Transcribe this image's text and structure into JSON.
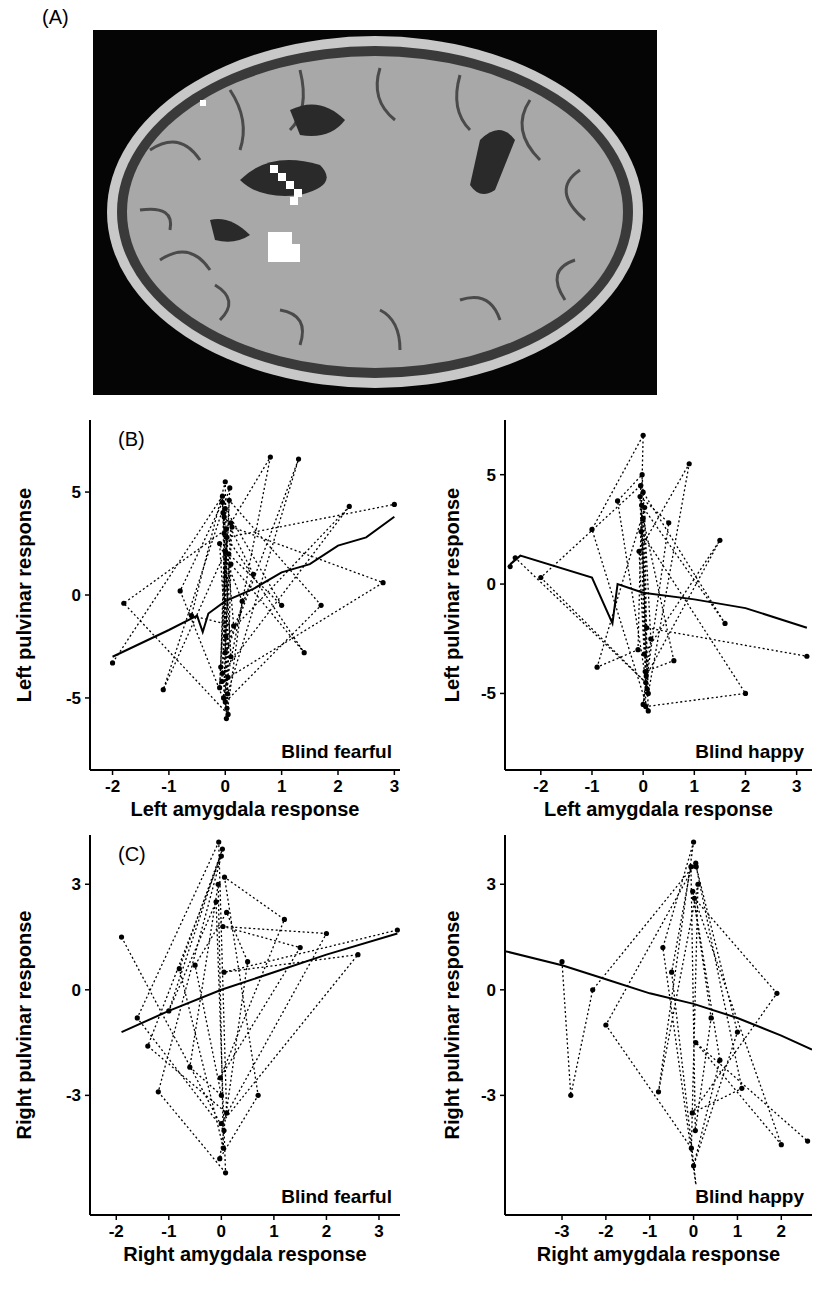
{
  "figure": {
    "panel_labels": [
      "(A)",
      "(B)",
      "(C)"
    ]
  },
  "chart_data": [
    {
      "type": "line",
      "x_label": "Left amygdala response",
      "y_label": "Left pulvinar response",
      "annotation": "Blind fearful",
      "xlim": [
        -2.4,
        3.1
      ],
      "ylim": [
        -8.5,
        8.5
      ],
      "xticks": [
        -2,
        -1,
        0,
        1,
        2,
        3
      ],
      "yticks": [
        -5,
        0,
        5
      ],
      "series": [
        {
          "type": "line",
          "line_style": "dotted",
          "marker": "circle",
          "color": "#000000",
          "x": [
            -2.0,
            -0.05,
            0.05,
            -1.8,
            0.02,
            -0.1,
            0.08,
            -1.1,
            0.0,
            0.1,
            -0.05,
            -0.8,
            0.03,
            -0.02,
            0.15,
            -0.6,
            0.0,
            0.05,
            -0.1,
            0.3,
            0.02,
            -0.04,
            0.5,
            0.0,
            0.1,
            0.8,
            -0.03,
            0.06,
            1.0,
            0.0,
            -0.08,
            1.3,
            0.04,
            0.1,
            1.4,
            -0.02,
            0.0,
            1.7,
            0.07,
            -0.05,
            2.2,
            0.01,
            0.12,
            2.8,
            -0.06,
            0.03,
            3.0
          ],
          "values": [
            -3.3,
            4.8,
            -5.8,
            -0.4,
            3.2,
            -4.5,
            5.2,
            -4.6,
            2.1,
            -3.0,
            4.5,
            0.2,
            -5.5,
            3.8,
            -1.5,
            -1.0,
            5.5,
            -4.0,
            2.5,
            -0.3,
            -6.0,
            4.0,
            1.0,
            -2.8,
            3.5,
            6.7,
            -5.0,
            2.0,
            -0.5,
            4.2,
            -3.5,
            6.6,
            -4.8,
            1.5,
            -2.8,
            3.0,
            -5.2,
            -0.5,
            4.6,
            -3.8,
            4.3,
            -2.0,
            3.3,
            0.6,
            -4.2,
            2.8,
            4.4
          ]
        },
        {
          "type": "line",
          "line_style": "solid",
          "marker": "none",
          "color": "#000000",
          "x": [
            -2.0,
            -1.0,
            -0.5,
            -0.4,
            -0.3,
            0,
            0.5,
            1,
            1.5,
            2,
            2.5,
            3.0
          ],
          "values": [
            -3.0,
            -1.7,
            -1.0,
            -1.8,
            -0.9,
            -0.3,
            0.3,
            1.1,
            1.5,
            2.4,
            2.8,
            3.8
          ]
        }
      ]
    },
    {
      "type": "line",
      "x_label": "Left amygdala response",
      "y_label": "Left pulvinar response",
      "annotation": "Blind happy",
      "xlim": [
        -2.7,
        3.3
      ],
      "ylim": [
        -8.5,
        7.5
      ],
      "xticks": [
        -2,
        -1,
        0,
        1,
        2,
        3
      ],
      "yticks": [
        -5,
        0,
        5
      ],
      "series": [
        {
          "type": "line",
          "line_style": "dotted",
          "marker": "circle",
          "color": "#000000",
          "x": [
            -2.6,
            -2.5,
            0.05,
            -2.0,
            -0.05,
            0.1,
            -1.0,
            0.0,
            -0.1,
            -0.9,
            0.03,
            0.08,
            -0.5,
            -0.02,
            0.15,
            0.0,
            0.5,
            -0.06,
            0.04,
            0.6,
            0.0,
            0.1,
            0.9,
            -0.08,
            0.02,
            1.5,
            0.06,
            -0.03,
            1.6,
            0.0,
            0.05,
            2.0,
            -0.04,
            0.07,
            3.2
          ],
          "values": [
            0.8,
            1.2,
            -4.5,
            0.3,
            4.5,
            -5.8,
            2.5,
            6.8,
            -3.0,
            -3.8,
            3.5,
            -4.8,
            3.8,
            5.0,
            -2.5,
            -5.5,
            2.8,
            4.0,
            -4.0,
            -3.5,
            3.0,
            -5.0,
            5.5,
            1.5,
            -3.2,
            2.0,
            -4.2,
            3.6,
            -1.8,
            4.2,
            -5.6,
            -5.0,
            2.4,
            -2.0,
            -3.3
          ]
        },
        {
          "type": "line",
          "line_style": "solid",
          "marker": "none",
          "color": "#000000",
          "x": [
            -2.6,
            -2.4,
            -1.0,
            -0.6,
            -0.5,
            0,
            1,
            2,
            3.2
          ],
          "values": [
            0.9,
            1.3,
            0.3,
            -1.8,
            0.0,
            -0.4,
            -0.7,
            -1.1,
            -2.0
          ]
        }
      ]
    },
    {
      "type": "line",
      "x_label": "Right amygdala response",
      "y_label": "Right pulvinar response",
      "annotation": "Blind fearful",
      "xlim": [
        -2.5,
        3.4
      ],
      "ylim": [
        -6.4,
        4.4
      ],
      "xticks": [
        -2,
        -1,
        0,
        1,
        2,
        3
      ],
      "yticks": [
        -3,
        0,
        3
      ],
      "series": [
        {
          "type": "line",
          "line_style": "dotted",
          "marker": "circle",
          "color": "#000000",
          "x": [
            -1.9,
            0.05,
            -1.6,
            -0.05,
            0.1,
            -1.4,
            0.0,
            -1.2,
            0.08,
            -0.1,
            -1.0,
            0.02,
            -0.8,
            0.04,
            -0.06,
            -0.6,
            0.0,
            -0.5,
            0.1,
            0.5,
            -0.03,
            0.7,
            0.06,
            1.2,
            -0.02,
            1.5,
            0.03,
            2.0,
            0.0,
            2.6,
            0.05,
            3.35
          ],
          "values": [
            1.5,
            -4.0,
            -0.8,
            4.2,
            -3.5,
            -1.6,
            3.8,
            -2.9,
            -5.2,
            2.5,
            -0.6,
            4.0,
            0.6,
            -4.5,
            3.0,
            -2.2,
            -3.0,
            0.7,
            2.2,
            0.8,
            -4.8,
            -3.0,
            3.2,
            2.0,
            -2.5,
            1.2,
            1.8,
            1.6,
            -3.8,
            1.0,
            0.5,
            1.7
          ]
        },
        {
          "type": "line",
          "line_style": "solid",
          "marker": "none",
          "color": "#000000",
          "x": [
            -1.9,
            -1,
            0,
            1,
            2,
            3.35
          ],
          "values": [
            -1.2,
            -0.6,
            0.0,
            0.5,
            1.0,
            1.6
          ]
        }
      ]
    },
    {
      "type": "line",
      "x_label": "Right amygdala response",
      "y_label": "Right pulvinar response",
      "annotation": "Blind happy",
      "xlim": [
        -4.3,
        2.7
      ],
      "ylim": [
        -6.4,
        4.4
      ],
      "xticks": [
        -3,
        -2,
        -1,
        0,
        1,
        2
      ],
      "yticks": [
        -3,
        0,
        3
      ],
      "series": [
        {
          "type": "line",
          "line_style": "dotted",
          "marker": "circle",
          "color": "#000000",
          "x": [
            -3.0,
            -2.8,
            -2.3,
            0.05,
            -2.0,
            -0.05,
            0.1,
            -0.8,
            0.0,
            -0.7,
            0.08,
            -0.5,
            -0.06,
            0.04,
            0.4,
            -0.02,
            0.6,
            0.0,
            1.0,
            0.06,
            1.1,
            -0.03,
            1.9,
            0.02,
            2.0,
            0.05,
            2.6
          ],
          "values": [
            0.8,
            -3.0,
            0.0,
            3.6,
            -1.0,
            -4.5,
            3.0,
            -2.9,
            4.2,
            1.2,
            -5.8,
            0.5,
            3.5,
            -4.0,
            -0.8,
            2.8,
            -2.0,
            -5.0,
            -1.2,
            3.5,
            -2.8,
            -3.5,
            -0.1,
            2.6,
            -4.4,
            -1.5,
            -4.3
          ]
        },
        {
          "type": "line",
          "line_style": "solid",
          "marker": "none",
          "color": "#000000",
          "x": [
            -4.3,
            -3,
            -2,
            -1,
            0,
            1,
            2,
            2.7
          ],
          "values": [
            1.1,
            0.7,
            0.3,
            -0.1,
            -0.4,
            -0.8,
            -1.3,
            -1.7
          ]
        }
      ]
    }
  ]
}
